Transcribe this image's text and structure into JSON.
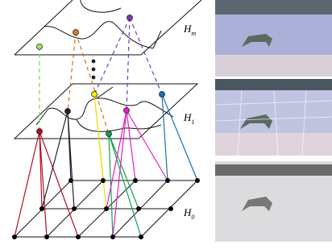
{
  "labels": [
    {
      "base": "H",
      "sub": "m"
    },
    {
      "base": "H",
      "sub": "1"
    },
    {
      "base": "H",
      "sub": "0"
    }
  ]
}
